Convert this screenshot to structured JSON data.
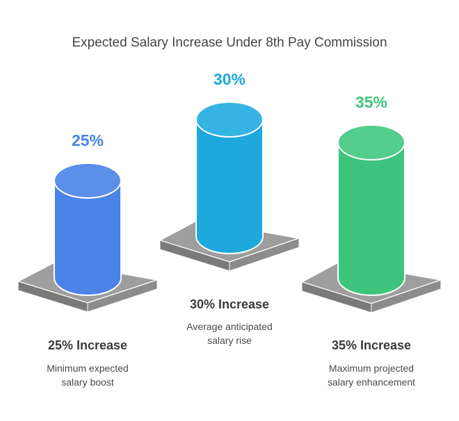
{
  "title": "Expected Salary Increase Under 8th Pay Commission",
  "chart_data": {
    "type": "bar",
    "title": "Expected Salary Increase Under 8th Pay Commission",
    "unit": "%",
    "categories": [
      "25% Increase",
      "30% Increase",
      "35% Increase"
    ],
    "values": [
      25,
      30,
      35
    ],
    "items": [
      {
        "value_label": "25%",
        "heading": "25% Increase",
        "desc_line1": "Minimum expected",
        "desc_line2": "salary boost",
        "color": "#4a84e6"
      },
      {
        "value_label": "30%",
        "heading": "30% Increase",
        "desc_line1": "Average anticipated",
        "desc_line2": "salary rise",
        "color": "#1ea8dc"
      },
      {
        "value_label": "35%",
        "heading": "35% Increase",
        "desc_line1": "Maximum projected",
        "desc_line2": "salary enhancement",
        "color": "#3ec47c"
      }
    ]
  }
}
